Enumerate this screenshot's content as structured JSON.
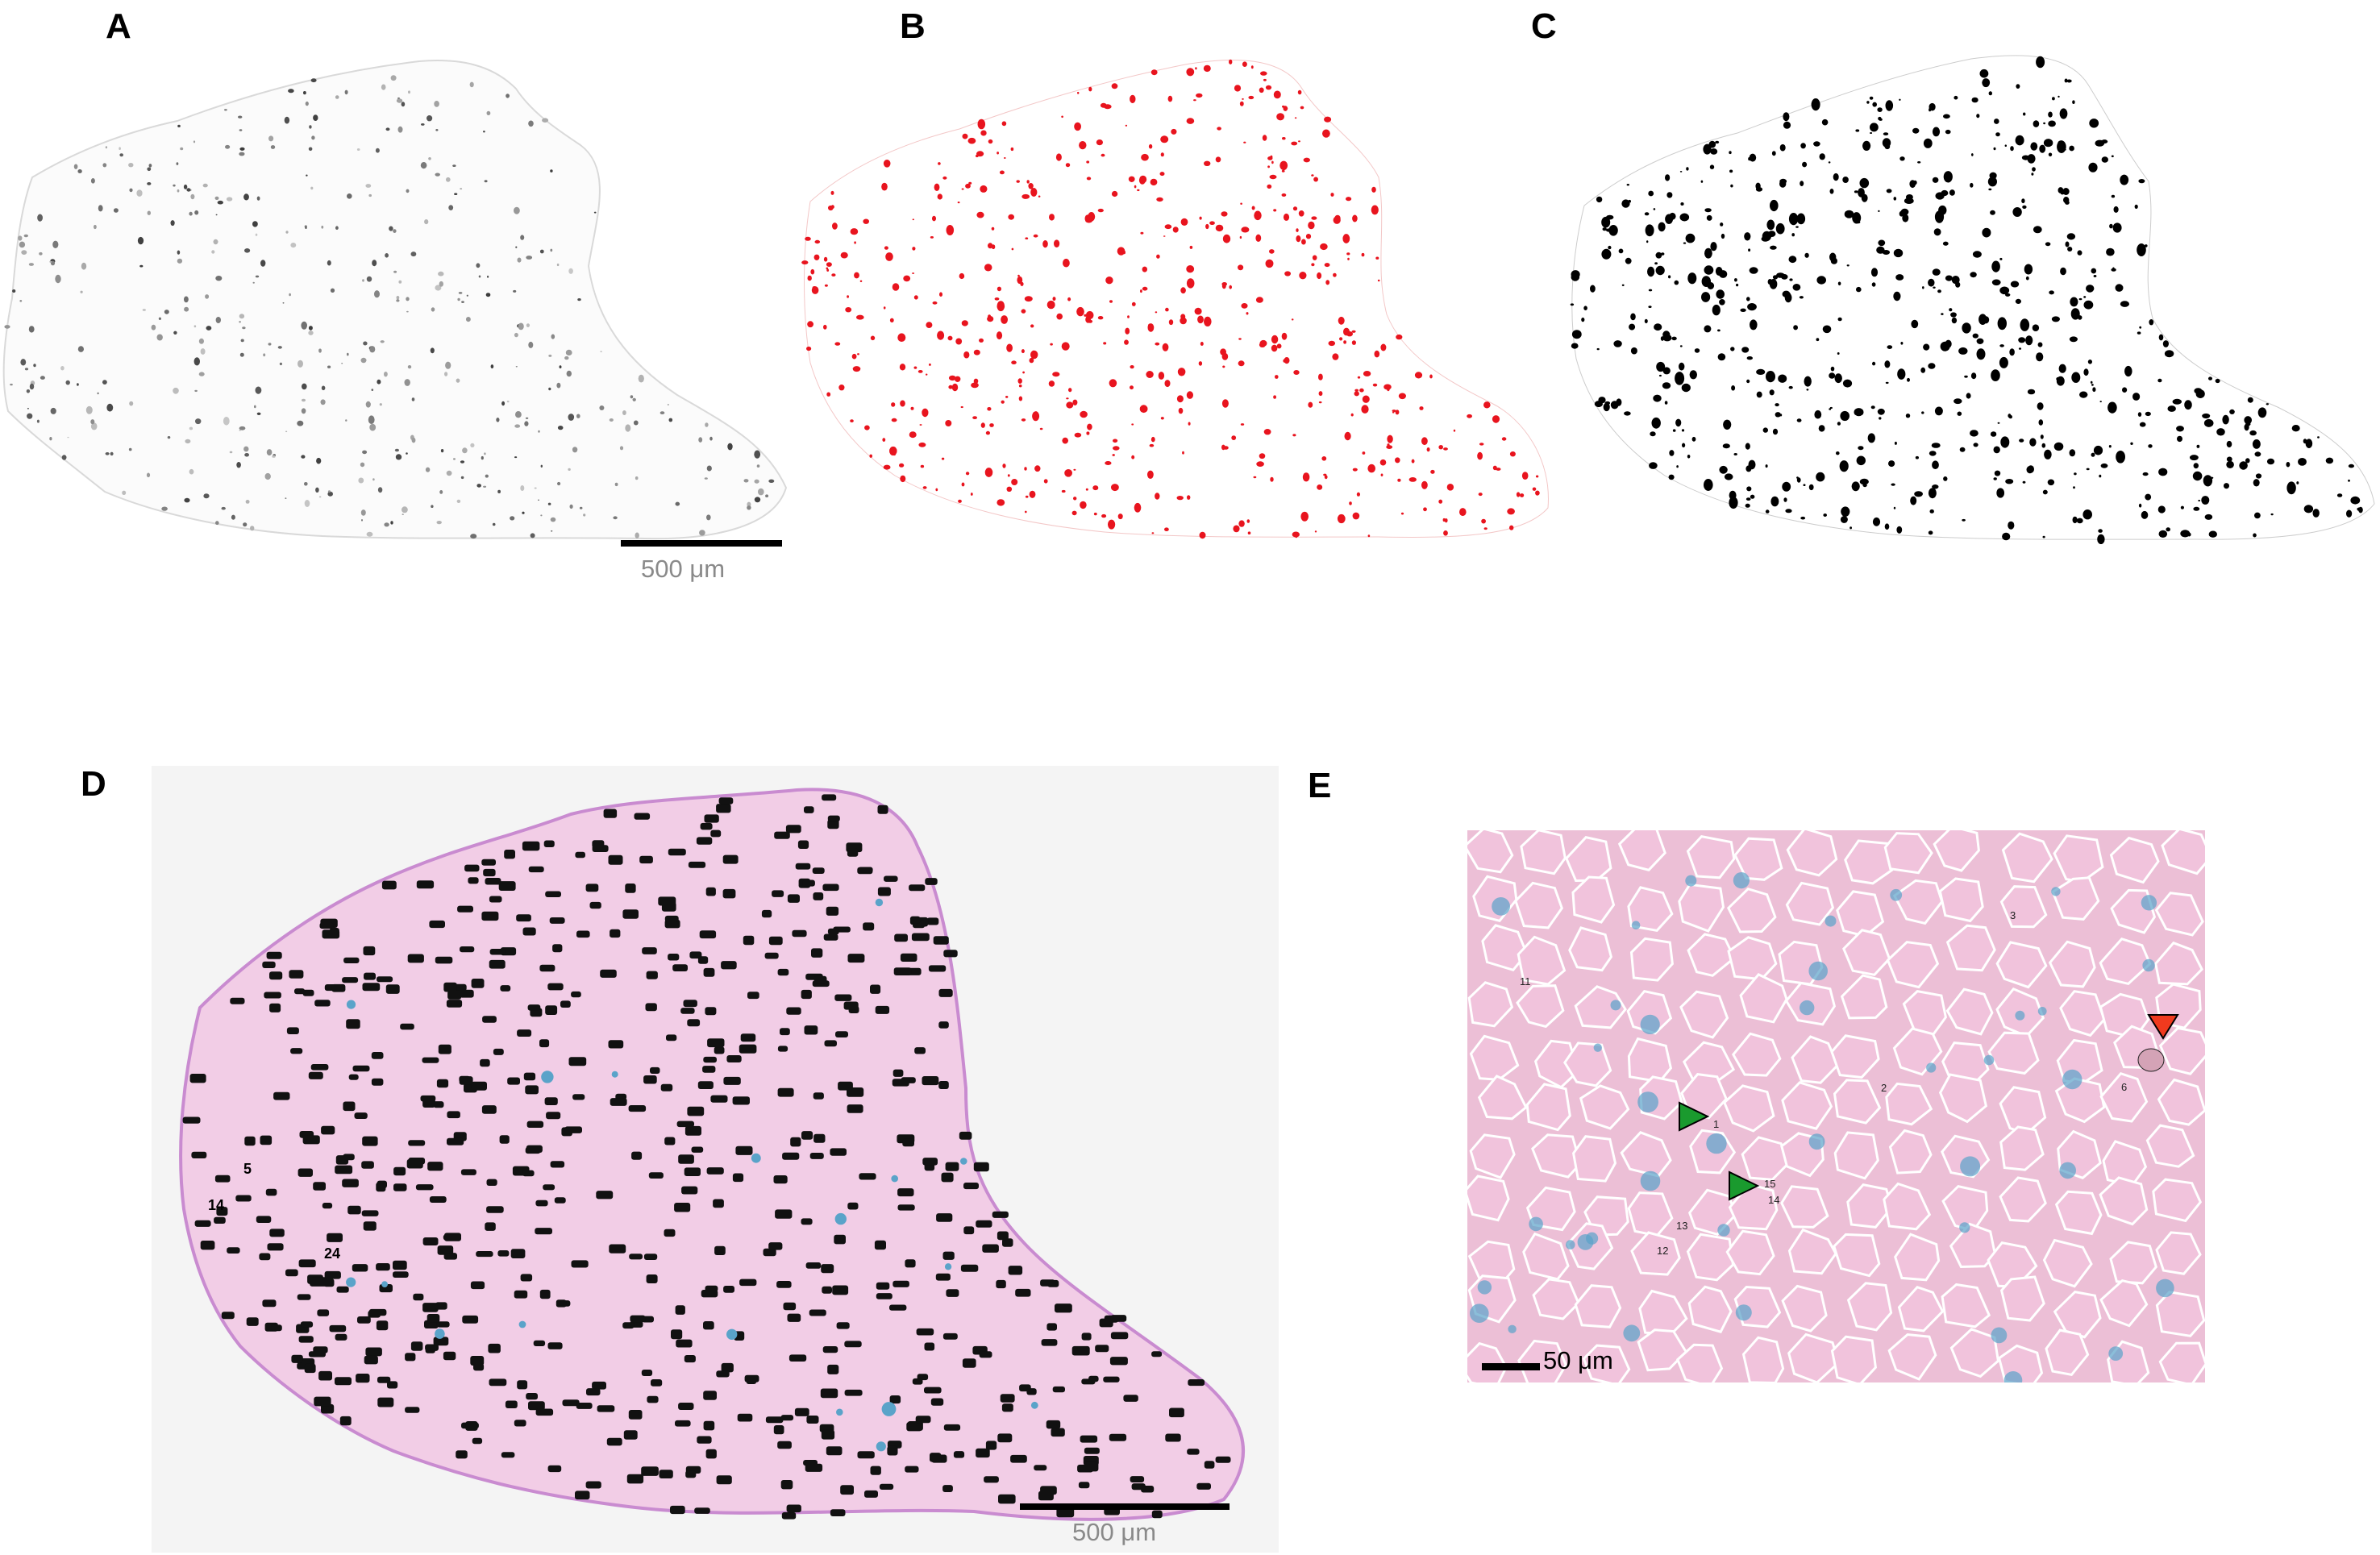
{
  "figure": {
    "panels": [
      {
        "id": "A",
        "label": "A",
        "description_kind": "grayscale-section"
      },
      {
        "id": "B",
        "label": "B",
        "description_kind": "red-thresholded-section"
      },
      {
        "id": "C",
        "label": "C",
        "description_kind": "black-binary-section"
      },
      {
        "id": "D",
        "label": "D",
        "description_kind": "stained-section-with-numbered-objects"
      },
      {
        "id": "E",
        "label": "E",
        "description_kind": "zoomed-stained-tissue-with-markers"
      }
    ],
    "scalebars": {
      "top": "500 μm",
      "d": "500 μm",
      "e": "50 μm"
    },
    "colors": {
      "red_mask": "#e8141e",
      "tissue_pink": "#f0c6e6",
      "tissue_pink_e": "#ecbfd6",
      "stain_blue": "#5aa3c9",
      "marker_green": "#1a9a2e",
      "marker_red": "#f03a1e",
      "background_gray": "#f4f4f4"
    },
    "panel_e_numbers": [
      "11",
      "1",
      "2",
      "3",
      "6",
      "12",
      "13",
      "14",
      "15"
    ],
    "panel_d_numbers": [
      "5",
      "14",
      "24"
    ]
  }
}
